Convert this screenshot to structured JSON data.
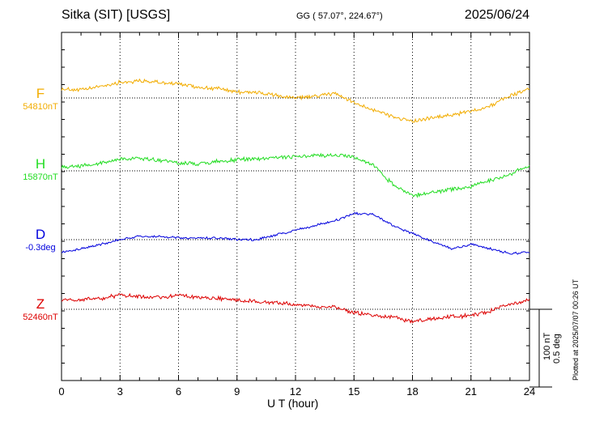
{
  "header": {
    "station": "Sitka (SIT)  [USGS]",
    "coords": "GG ( 57.07°, 224.67°)",
    "date": "2025/06/24"
  },
  "panels": [
    {
      "name": "F",
      "baseline": "54810nT",
      "color": "#f2ac00"
    },
    {
      "name": "H",
      "baseline": "15870nT",
      "color": "#22dd22"
    },
    {
      "name": "D",
      "baseline": "-0.3deg",
      "color": "#0000dd"
    },
    {
      "name": "Z",
      "baseline": "52460nT",
      "color": "#dd0000"
    }
  ],
  "scale": {
    "field": "100 nT",
    "angle": "0.5 deg"
  },
  "footnote": "Plotted at 2025/07/07 00:26 UT",
  "chart_data": {
    "type": "line",
    "title": "Sitka (SIT)  [USGS]",
    "xlabel": "U T (hour)",
    "ylabel": "",
    "x_ticks": [
      0,
      3,
      6,
      9,
      12,
      15,
      18,
      21,
      24
    ],
    "xlim": [
      0,
      24
    ],
    "grid": true,
    "units": "nT (deviation from baseline; D in deg, 100 nT = 0.5 deg)",
    "x": [
      0,
      1,
      2,
      3,
      4,
      5,
      6,
      7,
      8,
      9,
      10,
      11,
      12,
      13,
      14,
      15,
      16,
      17,
      18,
      19,
      20,
      21,
      22,
      23,
      24
    ],
    "series": [
      {
        "name": "F",
        "baseline": 54810,
        "values": [
          12,
          10,
          15,
          20,
          22,
          20,
          18,
          14,
          12,
          8,
          7,
          3,
          0,
          2,
          6,
          -6,
          -15,
          -24,
          -30,
          -26,
          -22,
          -17,
          -10,
          3,
          12
        ]
      },
      {
        "name": "H",
        "baseline": 15870,
        "values": [
          6,
          6,
          10,
          15,
          16,
          14,
          10,
          9,
          12,
          14,
          16,
          17,
          18,
          20,
          20,
          18,
          8,
          -18,
          -32,
          -28,
          -24,
          -20,
          -12,
          -5,
          8
        ]
      },
      {
        "name": "D",
        "baseline": -0.3,
        "values": [
          -0.08,
          -0.06,
          -0.03,
          0.0,
          0.02,
          0.02,
          0.01,
          0.01,
          0.01,
          0.0,
          0.0,
          0.03,
          0.06,
          0.09,
          0.12,
          0.17,
          0.16,
          0.09,
          0.04,
          -0.01,
          -0.06,
          -0.03,
          -0.06,
          -0.09,
          -0.08
        ]
      },
      {
        "name": "Z",
        "baseline": 52460,
        "values": [
          12,
          12,
          14,
          18,
          16,
          15,
          18,
          16,
          14,
          12,
          10,
          8,
          6,
          4,
          3,
          -4,
          -8,
          -10,
          -16,
          -12,
          -10,
          -8,
          -2,
          6,
          12
        ]
      }
    ]
  }
}
